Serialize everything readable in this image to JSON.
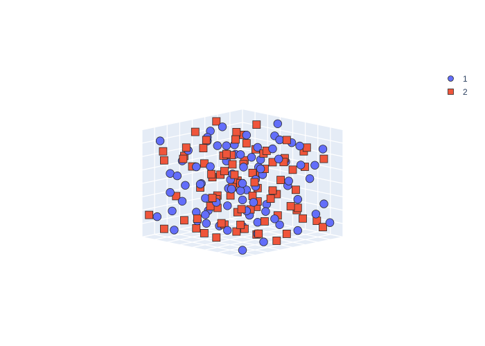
{
  "chart_data": {
    "type": "scatter3d",
    "title": "",
    "scene": {
      "xlabel": "",
      "ylabel": "",
      "zlabel": "",
      "xlim": [
        0,
        1
      ],
      "ylim": [
        0,
        1
      ],
      "zlim": [
        0,
        1
      ],
      "show_tick_labels": false,
      "grid": true,
      "background": "#e5ecf6"
    },
    "legend": {
      "placement": "top-right",
      "orientation": "vertical"
    },
    "series": [
      {
        "name": "1",
        "marker": "circle",
        "color": "#636efa",
        "points": [
          [
            0.05,
            0.92,
            0.86
          ],
          [
            0.12,
            0.85,
            0.78
          ],
          [
            0.2,
            0.75,
            0.93
          ],
          [
            0.3,
            0.67,
            0.88
          ],
          [
            0.4,
            0.55,
            0.96
          ],
          [
            0.55,
            0.62,
            0.83
          ],
          [
            0.65,
            0.42,
            0.91
          ],
          [
            0.78,
            0.33,
            0.87
          ],
          [
            0.88,
            0.2,
            0.95
          ],
          [
            0.95,
            0.1,
            0.82
          ],
          [
            0.15,
            0.7,
            0.62
          ],
          [
            0.25,
            0.48,
            0.71
          ],
          [
            0.35,
            0.8,
            0.55
          ],
          [
            0.45,
            0.3,
            0.66
          ],
          [
            0.55,
            0.18,
            0.74
          ],
          [
            0.62,
            0.75,
            0.6
          ],
          [
            0.7,
            0.58,
            0.52
          ],
          [
            0.82,
            0.45,
            0.69
          ],
          [
            0.92,
            0.35,
            0.57
          ],
          [
            0.08,
            0.4,
            0.73
          ],
          [
            0.18,
            0.22,
            0.64
          ],
          [
            0.28,
            0.95,
            0.5
          ],
          [
            0.38,
            0.12,
            0.58
          ],
          [
            0.48,
            0.68,
            0.45
          ],
          [
            0.58,
            0.88,
            0.66
          ],
          [
            0.68,
            0.08,
            0.62
          ],
          [
            0.76,
            0.92,
            0.48
          ],
          [
            0.86,
            0.7,
            0.4
          ],
          [
            0.96,
            0.55,
            0.6
          ],
          [
            0.04,
            0.15,
            0.52
          ],
          [
            0.12,
            0.58,
            0.42
          ],
          [
            0.22,
            0.35,
            0.38
          ],
          [
            0.32,
            0.18,
            0.45
          ],
          [
            0.42,
            0.85,
            0.35
          ],
          [
            0.52,
            0.42,
            0.4
          ],
          [
            0.6,
            0.28,
            0.32
          ],
          [
            0.72,
            0.65,
            0.3
          ],
          [
            0.8,
            0.15,
            0.42
          ],
          [
            0.9,
            0.82,
            0.28
          ],
          [
            0.98,
            0.38,
            0.36
          ],
          [
            0.06,
            0.78,
            0.3
          ],
          [
            0.16,
            0.05,
            0.4
          ],
          [
            0.26,
            0.62,
            0.25
          ],
          [
            0.36,
            0.45,
            0.22
          ],
          [
            0.46,
            0.95,
            0.2
          ],
          [
            0.56,
            0.1,
            0.28
          ],
          [
            0.66,
            0.5,
            0.18
          ],
          [
            0.74,
            0.78,
            0.15
          ],
          [
            0.84,
            0.3,
            0.22
          ],
          [
            0.94,
            0.62,
            0.12
          ],
          [
            0.1,
            0.9,
            0.18
          ],
          [
            0.2,
            0.5,
            0.12
          ],
          [
            0.3,
            0.28,
            0.15
          ],
          [
            0.4,
            0.72,
            0.08
          ],
          [
            0.5,
            0.25,
            0.1
          ],
          [
            0.6,
            0.95,
            0.05
          ],
          [
            0.7,
            0.35,
            0.08
          ],
          [
            0.8,
            0.6,
            0.05
          ],
          [
            0.9,
            0.08,
            0.1
          ],
          [
            0.03,
            0.6,
            0.08
          ],
          [
            0.14,
            0.32,
            0.26
          ],
          [
            0.24,
            0.82,
            0.34
          ],
          [
            0.34,
            0.58,
            0.68
          ],
          [
            0.44,
            0.08,
            0.78
          ],
          [
            0.54,
            0.52,
            0.58
          ],
          [
            0.64,
            0.22,
            0.48
          ],
          [
            0.74,
            0.4,
            0.78
          ],
          [
            0.84,
            0.88,
            0.7
          ],
          [
            0.94,
            0.48,
            0.85
          ],
          [
            0.07,
            0.28,
            0.92
          ],
          [
            0.17,
            0.98,
            0.72
          ],
          [
            0.27,
            0.12,
            0.82
          ],
          [
            0.37,
            0.38,
            0.3
          ],
          [
            0.47,
            0.62,
            0.88
          ],
          [
            0.57,
            0.72,
            0.22
          ],
          [
            0.67,
            0.85,
            0.38
          ],
          [
            0.77,
            0.05,
            0.55
          ],
          [
            0.87,
            0.52,
            0.18
          ],
          [
            0.97,
            0.25,
            0.45
          ],
          [
            0.5,
            0.5,
            0.5
          ],
          [
            0.33,
            0.7,
            0.1
          ],
          [
            0.63,
            0.63,
            0.95
          ],
          [
            0.23,
            0.23,
            0.55
          ],
          [
            0.83,
            0.13,
            0.75
          ],
          [
            0.13,
            0.13,
            0.98
          ]
        ]
      },
      {
        "name": "2",
        "marker": "square",
        "color": "#ef553b",
        "points": [
          [
            0.08,
            0.88,
            0.9
          ],
          [
            0.18,
            0.78,
            0.82
          ],
          [
            0.28,
            0.72,
            0.97
          ],
          [
            0.38,
            0.6,
            0.85
          ],
          [
            0.48,
            0.5,
            0.92
          ],
          [
            0.58,
            0.4,
            0.88
          ],
          [
            0.68,
            0.3,
            0.96
          ],
          [
            0.78,
            0.2,
            0.84
          ],
          [
            0.88,
            0.1,
            0.92
          ],
          [
            0.98,
            0.05,
            0.8
          ],
          [
            0.1,
            0.65,
            0.68
          ],
          [
            0.2,
            0.55,
            0.75
          ],
          [
            0.3,
            0.45,
            0.62
          ],
          [
            0.4,
            0.35,
            0.72
          ],
          [
            0.5,
            0.25,
            0.68
          ],
          [
            0.6,
            0.15,
            0.78
          ],
          [
            0.7,
            0.85,
            0.65
          ],
          [
            0.8,
            0.75,
            0.58
          ],
          [
            0.9,
            0.65,
            0.72
          ],
          [
            0.02,
            0.5,
            0.62
          ],
          [
            0.12,
            0.4,
            0.55
          ],
          [
            0.22,
            0.3,
            0.65
          ],
          [
            0.32,
            0.2,
            0.52
          ],
          [
            0.42,
            0.1,
            0.62
          ],
          [
            0.52,
            0.9,
            0.55
          ],
          [
            0.62,
            0.8,
            0.48
          ],
          [
            0.72,
            0.7,
            0.58
          ],
          [
            0.82,
            0.6,
            0.5
          ],
          [
            0.92,
            0.5,
            0.62
          ],
          [
            0.05,
            0.35,
            0.45
          ],
          [
            0.15,
            0.25,
            0.5
          ],
          [
            0.25,
            0.15,
            0.42
          ],
          [
            0.35,
            0.05,
            0.52
          ],
          [
            0.45,
            0.95,
            0.45
          ],
          [
            0.55,
            0.85,
            0.38
          ],
          [
            0.65,
            0.75,
            0.48
          ],
          [
            0.75,
            0.65,
            0.4
          ],
          [
            0.85,
            0.55,
            0.52
          ],
          [
            0.95,
            0.45,
            0.42
          ],
          [
            0.08,
            0.2,
            0.35
          ],
          [
            0.18,
            0.1,
            0.28
          ],
          [
            0.28,
            0.9,
            0.38
          ],
          [
            0.38,
            0.8,
            0.3
          ],
          [
            0.48,
            0.7,
            0.4
          ],
          [
            0.58,
            0.6,
            0.32
          ],
          [
            0.68,
            0.5,
            0.42
          ],
          [
            0.78,
            0.4,
            0.35
          ],
          [
            0.88,
            0.3,
            0.28
          ],
          [
            0.98,
            0.2,
            0.32
          ],
          [
            0.04,
            0.85,
            0.25
          ],
          [
            0.14,
            0.75,
            0.18
          ],
          [
            0.24,
            0.65,
            0.28
          ],
          [
            0.34,
            0.55,
            0.2
          ],
          [
            0.44,
            0.45,
            0.3
          ],
          [
            0.54,
            0.35,
            0.22
          ],
          [
            0.64,
            0.25,
            0.15
          ],
          [
            0.74,
            0.15,
            0.25
          ],
          [
            0.84,
            0.05,
            0.18
          ],
          [
            0.94,
            0.95,
            0.22
          ],
          [
            0.06,
            0.7,
            0.12
          ],
          [
            0.16,
            0.6,
            0.05
          ],
          [
            0.26,
            0.5,
            0.15
          ],
          [
            0.36,
            0.4,
            0.08
          ],
          [
            0.46,
            0.3,
            0.18
          ],
          [
            0.56,
            0.2,
            0.05
          ],
          [
            0.66,
            0.1,
            0.12
          ],
          [
            0.76,
            0.9,
            0.08
          ],
          [
            0.86,
            0.8,
            0.15
          ],
          [
            0.96,
            0.7,
            0.05
          ],
          [
            0.11,
            0.45,
            0.95
          ],
          [
            0.21,
            0.95,
            0.88
          ],
          [
            0.31,
            0.85,
            0.78
          ],
          [
            0.41,
            0.15,
            0.92
          ],
          [
            0.51,
            0.65,
            0.75
          ],
          [
            0.61,
            0.55,
            0.98
          ],
          [
            0.71,
            0.45,
            0.68
          ],
          [
            0.81,
            0.35,
            0.95
          ],
          [
            0.91,
            0.25,
            0.65
          ],
          [
            0.19,
            0.35,
            0.88
          ],
          [
            0.29,
            0.08,
            0.75
          ],
          [
            0.39,
            0.92,
            0.62
          ],
          [
            0.49,
            0.18,
            0.35
          ],
          [
            0.59,
            0.48,
            0.25
          ],
          [
            0.69,
            0.62,
            0.15
          ],
          [
            0.79,
            0.92,
            0.32
          ],
          [
            0.89,
            0.42,
            0.08
          ],
          [
            0.09,
            0.08,
            0.58
          ],
          [
            0.44,
            0.58,
            0.98
          ],
          [
            0.64,
            0.98,
            0.72
          ],
          [
            0.34,
            0.32,
            0.82
          ]
        ]
      }
    ]
  }
}
